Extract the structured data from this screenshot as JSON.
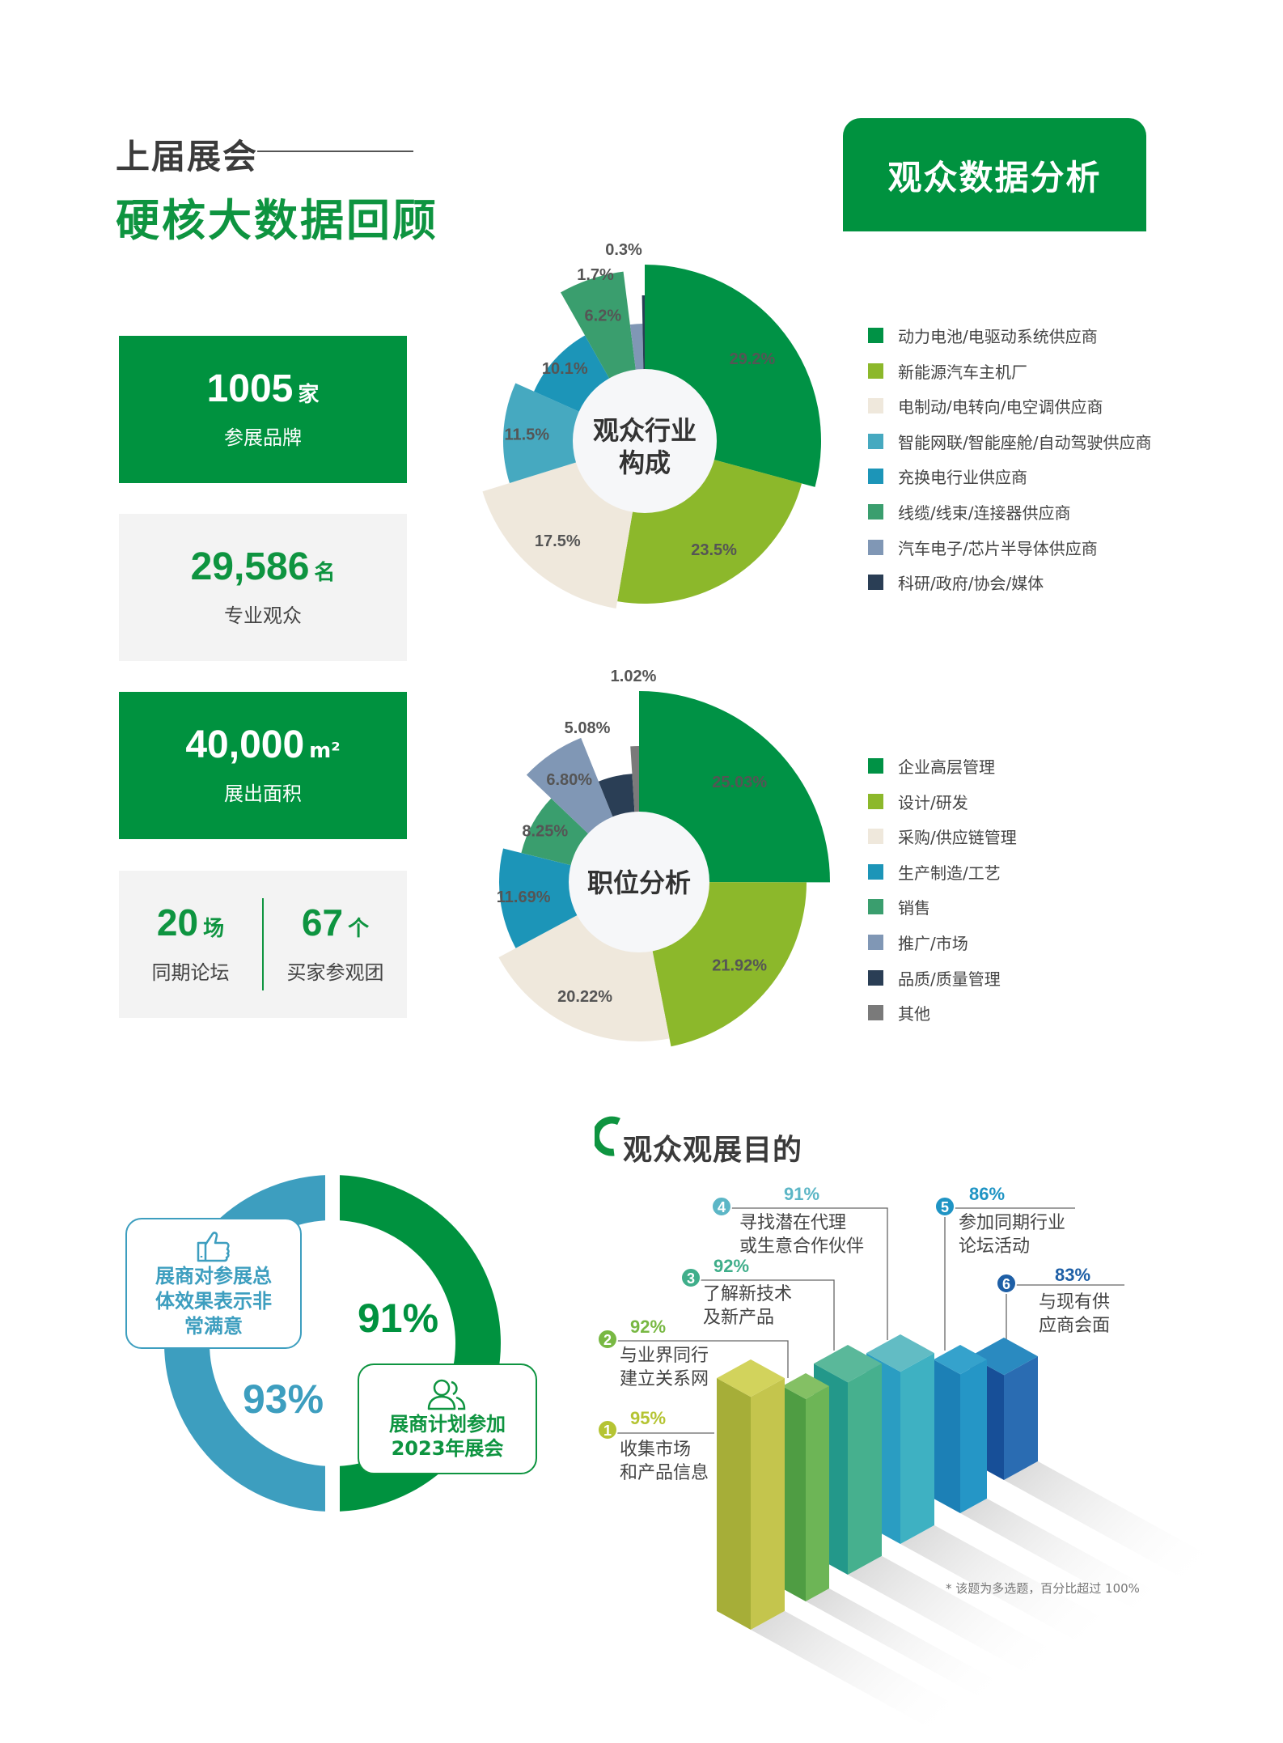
{
  "header": {
    "kicker": "上届展会",
    "title": "硬核大数据回顾",
    "section_badge": "观众数据分析"
  },
  "stats": [
    {
      "value": "1005",
      "unit": "家",
      "label": "参展品牌"
    },
    {
      "value": "29,586",
      "unit": "名",
      "label": "专业观众"
    },
    {
      "value": "40,000",
      "unit": "m²",
      "label": "展出面积"
    }
  ],
  "stats_split": [
    {
      "value": "20",
      "unit": "场",
      "label": "同期论坛"
    },
    {
      "value": "67",
      "unit": "个",
      "label": "买家参观团"
    }
  ],
  "satisfaction": {
    "left_pct": "93%",
    "left_text": [
      "展商对参展总",
      "体效果表示非",
      "常满意"
    ],
    "left_icon": "thumbs-up-icon",
    "left_color": "#3d9ebf",
    "right_pct": "91%",
    "right_text": [
      "展商计划参加",
      "2023年展会"
    ],
    "right_icon": "users-icon",
    "right_color": "#00923f"
  },
  "purpose": {
    "title": "观众观展目的",
    "footnote": "* 该题为多选题，百分比超过 100%"
  },
  "chart_data": [
    {
      "type": "pie",
      "title": "观众行业构成",
      "labels": [
        "动力电池/电驱动系统供应商",
        "新能源汽车主机厂",
        "电制动/电转向/电空调供应商",
        "智能网联/智能座舱/自动驾驶供应商",
        "充换电行业供应商",
        "线缆/线束/连接器供应商",
        "汽车电子/芯片半导体供应商",
        "科研/政府/协会/媒体"
      ],
      "values": [
        29.2,
        23.5,
        17.5,
        11.5,
        10.1,
        6.2,
        1.7,
        0.3
      ],
      "value_labels": [
        "29.2%",
        "23.5%",
        "17.5%",
        "11.5%",
        "10.1%",
        "6.2%",
        "1.7%",
        "0.3%"
      ],
      "colors": [
        "#009245",
        "#8cb82b",
        "#efe8dc",
        "#46a9c0",
        "#1c95b8",
        "#3a9e6e",
        "#8097b5",
        "#2a3e55"
      ],
      "legend": "right"
    },
    {
      "type": "pie",
      "title": "职位分析",
      "labels": [
        "企业高层管理",
        "设计/研发",
        "采购/供应链管理",
        "生产制造/工艺",
        "销售",
        "推广/市场",
        "品质/质量管理",
        "其他"
      ],
      "values": [
        25.03,
        21.92,
        20.22,
        11.69,
        8.25,
        6.8,
        5.08,
        1.02
      ],
      "value_labels": [
        "25.03%",
        "21.92%",
        "20.22%",
        "11.69%",
        "8.25%",
        "6.80%",
        "5.08%",
        "1.02%"
      ],
      "colors": [
        "#009245",
        "#8cb82b",
        "#efe8dc",
        "#1c95b8",
        "#3a9e6e",
        "#8097b5",
        "#2a3e55",
        "#7a7a7a"
      ],
      "legend": "right"
    },
    {
      "type": "bar",
      "title": "观众观展目的",
      "categories": [
        [
          "收集市场",
          "和产品信息"
        ],
        [
          "与业界同行",
          "建立关系网"
        ],
        [
          "了解新技术",
          "及新产品"
        ],
        [
          "寻找潜在代理",
          "或生意合作伙伴"
        ],
        [
          "参加同期行业",
          "论坛活动"
        ],
        [
          "与现有供",
          "应商会面"
        ]
      ],
      "ranks": [
        "1",
        "2",
        "3",
        "4",
        "5",
        "6"
      ],
      "values": [
        95,
        92,
        92,
        91,
        86,
        83
      ],
      "value_labels": [
        "95%",
        "92%",
        "92%",
        "91%",
        "86%",
        "83%"
      ],
      "colors": [
        "#b5c433",
        "#78b843",
        "#3fae8a",
        "#5cb6c6",
        "#1f94c4",
        "#1e5fa6"
      ]
    }
  ]
}
